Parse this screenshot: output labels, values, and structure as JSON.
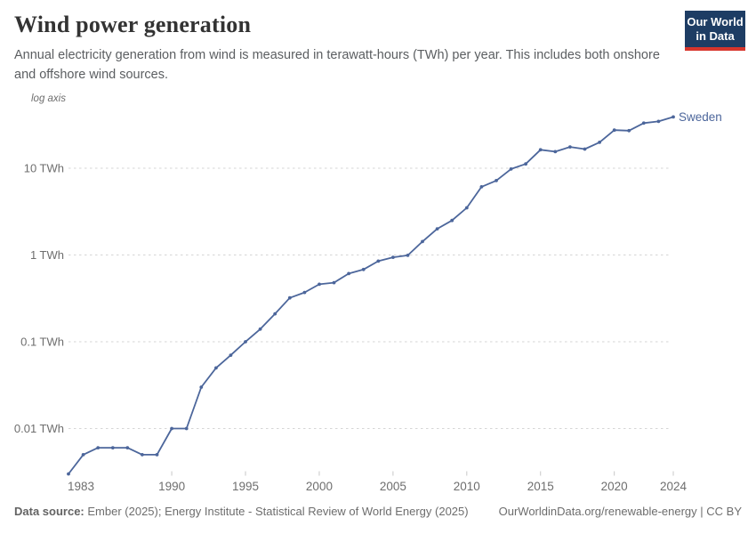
{
  "header": {
    "title": "Wind power generation",
    "subtitle": "Annual electricity generation from wind is measured in terawatt-hours (TWh) per year. This includes both onshore and offshore wind sources.",
    "logo": {
      "line1": "Our World",
      "line2": "in Data",
      "bg_color": "#1e3d64",
      "bar_color": "#d7352c"
    }
  },
  "chart_data": {
    "type": "line",
    "title": "Wind power generation",
    "axis_note": "log axis",
    "entity_label": "Sweden",
    "line_color": "#4c669b",
    "grid": true,
    "y_scale": "log",
    "xlim": [
      1983,
      2024
    ],
    "ylim": [
      0.002,
      50
    ],
    "x": [
      1983,
      1984,
      1985,
      1986,
      1987,
      1988,
      1989,
      1990,
      1991,
      1992,
      1993,
      1994,
      1995,
      1996,
      1997,
      1998,
      1999,
      2000,
      2001,
      2002,
      2003,
      2004,
      2005,
      2006,
      2007,
      2008,
      2009,
      2010,
      2011,
      2012,
      2013,
      2014,
      2015,
      2016,
      2017,
      2018,
      2019,
      2020,
      2021,
      2022,
      2023,
      2024
    ],
    "series": [
      {
        "name": "Sweden",
        "values": [
          0.003,
          0.005,
          0.006,
          0.006,
          0.006,
          0.005,
          0.005,
          0.01,
          0.01,
          0.03,
          0.05,
          0.07,
          0.1,
          0.14,
          0.21,
          0.32,
          0.37,
          0.46,
          0.48,
          0.61,
          0.68,
          0.85,
          0.94,
          0.99,
          1.43,
          2.0,
          2.5,
          3.5,
          6.1,
          7.2,
          9.8,
          11.2,
          16.3,
          15.5,
          17.6,
          16.6,
          19.9,
          27.5,
          27.1,
          33.1,
          34.6,
          39
        ]
      }
    ],
    "y_ticks": [
      {
        "v": 10,
        "label": "10 TWh"
      },
      {
        "v": 1,
        "label": "1 TWh"
      },
      {
        "v": 0.1,
        "label": "0.1 TWh"
      },
      {
        "v": 0.01,
        "label": "0.01 TWh"
      }
    ],
    "x_tick_years": [
      1983,
      1990,
      1995,
      2000,
      2005,
      2010,
      2015,
      2020,
      2024
    ]
  },
  "footer": {
    "source_label": "Data source:",
    "source_text": "Ember (2025); Energy Institute - Statistical Review of World Energy (2025)",
    "attribution": "OurWorldinData.org/renewable-energy | CC BY"
  }
}
